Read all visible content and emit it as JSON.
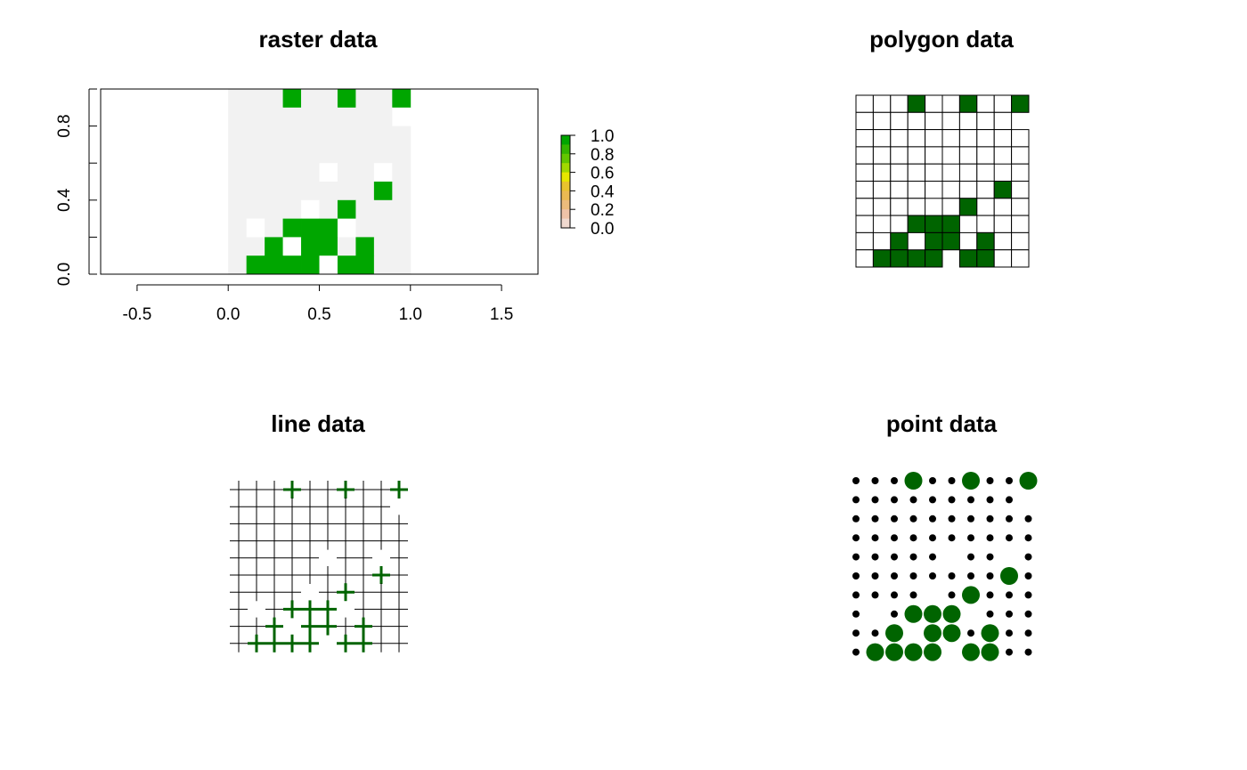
{
  "chart_data": [
    {
      "type": "heatmap",
      "title": "raster data",
      "xlim": [
        -0.7,
        1.7
      ],
      "ylim": [
        0,
        1
      ],
      "x_ticks": [
        "-0.5",
        "0.0",
        "0.5",
        "1.0",
        "1.5"
      ],
      "x_tick_values": [
        -0.5,
        0.0,
        0.5,
        1.0,
        1.5
      ],
      "y_ticks": [
        "0.0",
        "0.4",
        "0.8"
      ],
      "y_tick_values": [
        0.0,
        0.4,
        0.8
      ],
      "legend": {
        "labels": [
          "1.0",
          "0.8",
          "0.6",
          "0.4",
          "0.2",
          "0.0"
        ],
        "values": [
          1.0,
          0.8,
          0.6,
          0.4,
          0.2,
          0.0
        ],
        "colors": [
          "#00a600",
          "#63c600",
          "#e6e600",
          "#eaba52",
          "#eec2a8",
          "#f2f2f2"
        ]
      },
      "cell_colors": {
        "zero": "#f2f2f2",
        "one": "#00a600",
        "na": "#ffffff"
      },
      "grid_cols": 10,
      "grid_rows": 10,
      "rows_top_to_bottom": [
        [
          0,
          0,
          0,
          1,
          0,
          0,
          1,
          0,
          0,
          1
        ],
        [
          0,
          0,
          0,
          0,
          0,
          0,
          0,
          0,
          0,
          null
        ],
        [
          0,
          0,
          0,
          0,
          0,
          0,
          0,
          0,
          0,
          0
        ],
        [
          0,
          0,
          0,
          0,
          0,
          0,
          0,
          0,
          0,
          0
        ],
        [
          0,
          0,
          0,
          0,
          0,
          null,
          0,
          0,
          null,
          0
        ],
        [
          0,
          0,
          0,
          0,
          0,
          0,
          0,
          0,
          1,
          0
        ],
        [
          0,
          0,
          0,
          0,
          null,
          0,
          1,
          0,
          0,
          0
        ],
        [
          0,
          null,
          0,
          1,
          1,
          1,
          null,
          0,
          0,
          0
        ],
        [
          0,
          0,
          1,
          null,
          1,
          1,
          0,
          1,
          0,
          0
        ],
        [
          0,
          1,
          1,
          1,
          1,
          null,
          1,
          1,
          0,
          0
        ]
      ]
    },
    {
      "type": "heatmap",
      "title": "polygon data",
      "cell_colors": {
        "one": "#006400",
        "zero": "#ffffff"
      },
      "grid_cols": 10,
      "grid_rows": 10,
      "rows_top_to_bottom": [
        [
          0,
          0,
          0,
          1,
          0,
          0,
          1,
          0,
          0,
          1
        ],
        [
          0,
          0,
          0,
          0,
          0,
          0,
          0,
          0,
          0,
          null
        ],
        [
          0,
          0,
          0,
          0,
          0,
          0,
          0,
          0,
          0,
          0
        ],
        [
          0,
          0,
          0,
          0,
          0,
          0,
          0,
          0,
          0,
          0
        ],
        [
          0,
          0,
          0,
          0,
          0,
          null,
          0,
          0,
          null,
          0
        ],
        [
          0,
          0,
          0,
          0,
          0,
          0,
          0,
          0,
          1,
          0
        ],
        [
          0,
          0,
          0,
          0,
          null,
          0,
          1,
          0,
          0,
          0
        ],
        [
          0,
          null,
          0,
          1,
          1,
          1,
          null,
          0,
          0,
          0
        ],
        [
          0,
          0,
          1,
          null,
          1,
          1,
          0,
          1,
          0,
          0
        ],
        [
          0,
          1,
          1,
          1,
          1,
          null,
          1,
          1,
          0,
          0
        ]
      ]
    },
    {
      "type": "scatter",
      "title": "line data",
      "highlight_color": "#006400",
      "line_color": "#000000",
      "grid_cols": 10,
      "grid_rows": 10,
      "rows_top_to_bottom": [
        [
          0,
          0,
          0,
          1,
          0,
          0,
          1,
          0,
          0,
          1
        ],
        [
          0,
          0,
          0,
          0,
          0,
          0,
          0,
          0,
          0,
          null
        ],
        [
          0,
          0,
          0,
          0,
          0,
          0,
          0,
          0,
          0,
          0
        ],
        [
          0,
          0,
          0,
          0,
          0,
          0,
          0,
          0,
          0,
          0
        ],
        [
          0,
          0,
          0,
          0,
          0,
          null,
          0,
          0,
          null,
          0
        ],
        [
          0,
          0,
          0,
          0,
          0,
          0,
          0,
          0,
          1,
          0
        ],
        [
          0,
          0,
          0,
          0,
          null,
          0,
          1,
          0,
          0,
          0
        ],
        [
          0,
          null,
          0,
          1,
          1,
          1,
          null,
          0,
          0,
          0
        ],
        [
          0,
          0,
          1,
          null,
          1,
          1,
          0,
          1,
          0,
          0
        ],
        [
          0,
          1,
          1,
          1,
          1,
          null,
          1,
          1,
          0,
          0
        ]
      ]
    },
    {
      "type": "scatter",
      "title": "point data",
      "highlight_color": "#006400",
      "point_color": "#000000",
      "grid_cols": 10,
      "grid_rows": 10,
      "rows_top_to_bottom": [
        [
          0,
          0,
          0,
          1,
          0,
          0,
          1,
          0,
          0,
          1
        ],
        [
          0,
          0,
          0,
          0,
          0,
          0,
          0,
          0,
          0,
          null
        ],
        [
          0,
          0,
          0,
          0,
          0,
          0,
          0,
          0,
          0,
          0
        ],
        [
          0,
          0,
          0,
          0,
          0,
          0,
          0,
          0,
          0,
          0
        ],
        [
          0,
          0,
          0,
          0,
          0,
          null,
          0,
          0,
          null,
          0
        ],
        [
          0,
          0,
          0,
          0,
          0,
          0,
          0,
          0,
          1,
          0
        ],
        [
          0,
          0,
          0,
          0,
          null,
          0,
          1,
          0,
          0,
          0
        ],
        [
          0,
          null,
          0,
          1,
          1,
          1,
          null,
          0,
          0,
          0
        ],
        [
          0,
          0,
          1,
          null,
          1,
          1,
          0,
          1,
          0,
          0
        ],
        [
          0,
          1,
          1,
          1,
          1,
          null,
          1,
          1,
          0,
          0
        ]
      ]
    }
  ]
}
